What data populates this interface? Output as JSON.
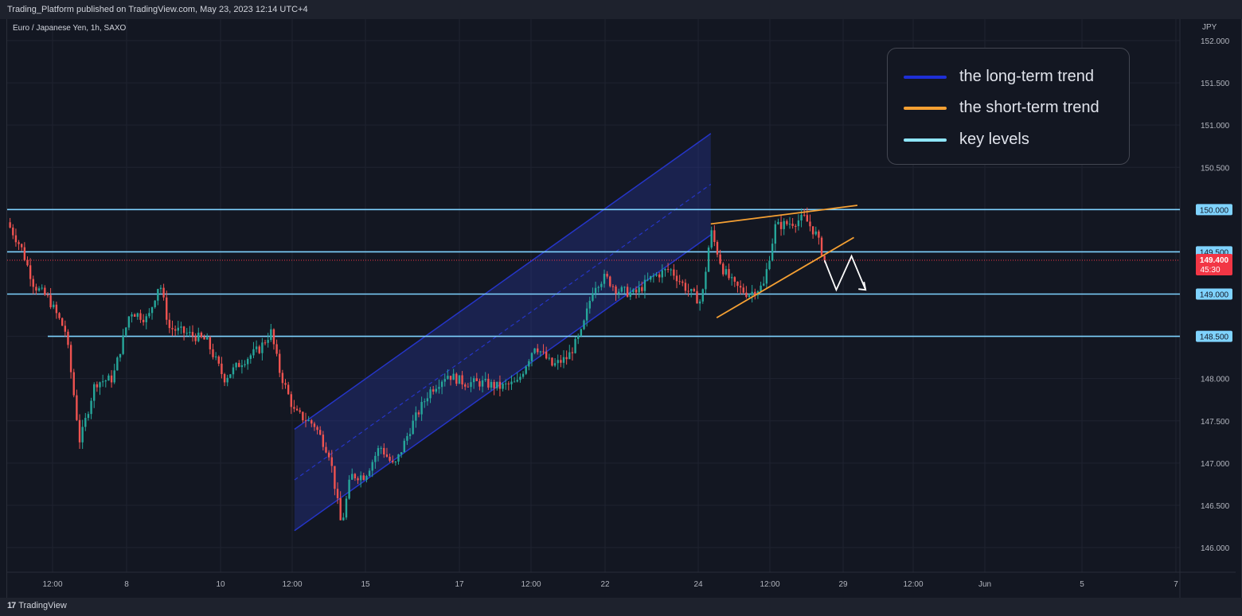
{
  "header": {
    "published": "Trading_Platform published on TradingView.com, May 23, 2023 12:14 UTC+4"
  },
  "symbol": {
    "title": "Euro / Japanese Yen, 1h, SAXO"
  },
  "footer": {
    "brand": "TradingView",
    "brand_mark": "17"
  },
  "colors": {
    "background": "#131722",
    "up_candle": "#26a69a",
    "down_candle": "#ef5350",
    "long_term_trend": "#2535c8",
    "short_term_trend": "#f5a033",
    "key_levels": "#7fd3ff",
    "current_price": "#f23645"
  },
  "legend": {
    "items": [
      {
        "label": "the long-term trend",
        "color": "#1e2fd6"
      },
      {
        "label": "the short-term trend",
        "color": "#f5a033"
      },
      {
        "label": "key levels",
        "color": "#8fe6ff"
      }
    ]
  },
  "chart_data": {
    "type": "candlestick",
    "price_axis": {
      "unit": "JPY",
      "ticks": [
        "152.000",
        "151.500",
        "151.000",
        "150.500",
        "150.000",
        "149.500",
        "149.000",
        "148.500",
        "148.000",
        "147.500",
        "147.000",
        "146.500",
        "146.000"
      ],
      "range": [
        145.6,
        152.05
      ]
    },
    "time_axis": {
      "ticks": [
        "12:00",
        "8",
        "10",
        "12:00",
        "15",
        "17",
        "12:00",
        "22",
        "24",
        "12:00",
        "29",
        "12:00",
        "Jun",
        "5",
        "7"
      ]
    },
    "key_levels": [
      {
        "price": 150.0,
        "label": "150.000"
      },
      {
        "price": 149.5,
        "label": "149.500"
      },
      {
        "price": 149.0,
        "label": "149.000"
      },
      {
        "price": 148.5,
        "label": "148.500"
      }
    ],
    "current_price": {
      "label": "149.400",
      "countdown": "45:30",
      "price": 149.4
    },
    "price_path": [
      [
        0,
        149.85
      ],
      [
        0.012,
        149.55
      ],
      [
        0.023,
        149.1
      ],
      [
        0.035,
        148.95
      ],
      [
        0.05,
        148.55
      ],
      [
        0.062,
        147.25
      ],
      [
        0.075,
        147.95
      ],
      [
        0.09,
        148.0
      ],
      [
        0.105,
        148.8
      ],
      [
        0.12,
        148.7
      ],
      [
        0.13,
        149.15
      ],
      [
        0.138,
        148.6
      ],
      [
        0.15,
        148.55
      ],
      [
        0.17,
        148.45
      ],
      [
        0.185,
        148.0
      ],
      [
        0.2,
        148.2
      ],
      [
        0.215,
        148.35
      ],
      [
        0.225,
        148.55
      ],
      [
        0.232,
        148.1
      ],
      [
        0.245,
        147.6
      ],
      [
        0.262,
        147.45
      ],
      [
        0.275,
        147.1
      ],
      [
        0.285,
        146.25
      ],
      [
        0.293,
        146.85
      ],
      [
        0.305,
        146.85
      ],
      [
        0.318,
        147.2
      ],
      [
        0.33,
        146.95
      ],
      [
        0.345,
        147.45
      ],
      [
        0.36,
        147.85
      ],
      [
        0.375,
        148.05
      ],
      [
        0.39,
        147.95
      ],
      [
        0.405,
        147.95
      ],
      [
        0.42,
        147.9
      ],
      [
        0.435,
        147.95
      ],
      [
        0.45,
        148.4
      ],
      [
        0.465,
        148.15
      ],
      [
        0.478,
        148.25
      ],
      [
        0.49,
        148.55
      ],
      [
        0.5,
        149.1
      ],
      [
        0.51,
        149.2
      ],
      [
        0.52,
        149.05
      ],
      [
        0.535,
        149.0
      ],
      [
        0.55,
        149.2
      ],
      [
        0.565,
        149.3
      ],
      [
        0.58,
        149.05
      ],
      [
        0.592,
        148.9
      ],
      [
        0.6,
        149.75
      ],
      [
        0.61,
        149.3
      ],
      [
        0.62,
        149.1
      ],
      [
        0.632,
        149.0
      ],
      [
        0.645,
        149.1
      ],
      [
        0.655,
        149.8
      ],
      [
        0.67,
        149.85
      ],
      [
        0.68,
        149.9
      ],
      [
        0.69,
        149.7
      ],
      [
        0.697,
        149.4
      ]
    ],
    "long_term_channel": {
      "start": {
        "t": 0.245,
        "lower": 146.2,
        "upper": 147.4
      },
      "end": {
        "t": 0.6,
        "lower": 149.7,
        "upper": 150.9
      },
      "midline_end": 150.3
    },
    "short_term_wedge": {
      "upper": {
        "t1": 0.6,
        "p1": 149.83,
        "t2": 0.725,
        "p2": 150.05
      },
      "lower": {
        "t1": 0.605,
        "p1": 148.72,
        "t2": 0.722,
        "p2": 149.67
      }
    },
    "projection": [
      [
        0.697,
        149.4
      ],
      [
        0.707,
        149.05
      ],
      [
        0.72,
        149.45
      ],
      [
        0.732,
        149.05
      ]
    ]
  }
}
